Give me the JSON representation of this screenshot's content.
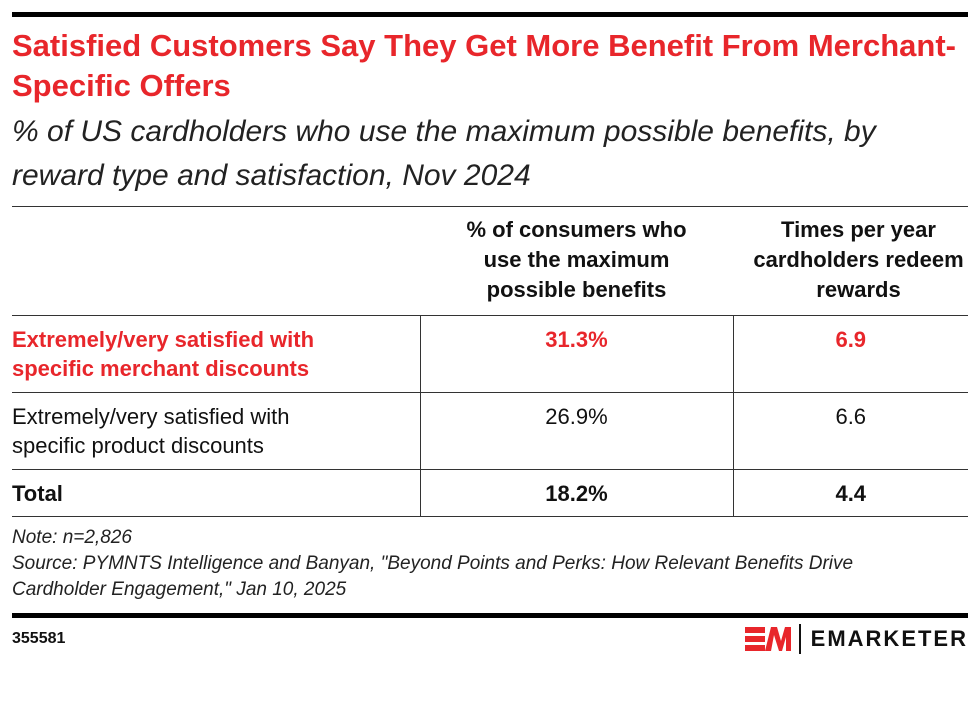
{
  "title": "Satisfied Customers Say They Get More Benefit From Merchant-Specific Offers",
  "subtitle": "% of US cardholders who use the maximum possible benefits, by reward type and satisfaction, Nov 2024",
  "chart_data": {
    "type": "table",
    "columns": [
      "",
      "% of consumers who use the maximum possible benefits",
      "Times per year cardholders redeem rewards"
    ],
    "rows": [
      {
        "label": "Extremely/very satisfied with specific merchant discounts",
        "values": [
          "31.3%",
          "6.9"
        ],
        "highlight": true
      },
      {
        "label": "Extremely/very satisfied with specific product discounts",
        "values": [
          "26.9%",
          "6.6"
        ],
        "highlight": false
      },
      {
        "label": "Total",
        "values": [
          "18.2%",
          "4.4"
        ],
        "highlight": false
      }
    ]
  },
  "notes": {
    "note": "Note: n=2,826",
    "source": "Source: PYMNTS Intelligence and Banyan, \"Beyond Points and Perks: How Relevant Benefits Drive Cardholder Engagement,\" Jan 10, 2025"
  },
  "footer": {
    "chart_id": "355581",
    "logo": "EMARKETER"
  },
  "colors": {
    "accent": "#e8262b"
  }
}
